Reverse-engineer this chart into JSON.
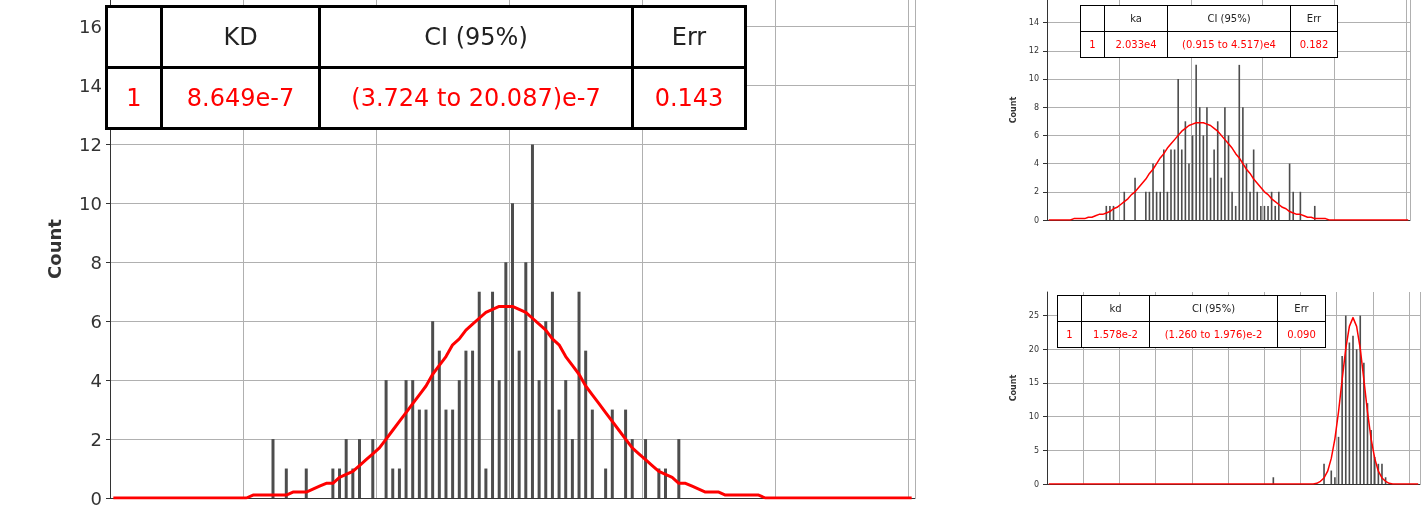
{
  "chart_data": [
    {
      "type": "bar",
      "ylabel": "Count",
      "tick_labels": "y",
      "grid": true,
      "annotations": [
        "KD",
        "CI (95%)",
        "Err",
        "1",
        "8.649e-7",
        "(3.724 to 20.087)e-7",
        "0.143"
      ],
      "categories": [
        null,
        null,
        null,
        null,
        null,
        null,
        null,
        null,
        null,
        null,
        null,
        null,
        null,
        null,
        null,
        null,
        null,
        null,
        null,
        null,
        null,
        null,
        null,
        null,
        null,
        null,
        null,
        null,
        null,
        null,
        null,
        null,
        null,
        null,
        null,
        null,
        null,
        null,
        null,
        null,
        null,
        null,
        null,
        null,
        null,
        null,
        null,
        null,
        null,
        null,
        null,
        null,
        null,
        null,
        null,
        null,
        null,
        null,
        null,
        null,
        null,
        null,
        null,
        null,
        null,
        null,
        null,
        null,
        null,
        null,
        null,
        null,
        null,
        null,
        null,
        null,
        null,
        null,
        null,
        null,
        null,
        null,
        null,
        null,
        null,
        null,
        null,
        null,
        null,
        null,
        null,
        null,
        null,
        null,
        null,
        null,
        null,
        null,
        null,
        null,
        null,
        null,
        null,
        null,
        null,
        null,
        null,
        null,
        null,
        null,
        null,
        null,
        null,
        null,
        null,
        null,
        null,
        null,
        null,
        null,
        null
      ],
      "ylim": [
        0,
        16.9
      ],
      "yticks": [
        0,
        2,
        4,
        6,
        8,
        10,
        12,
        14,
        16
      ],
      "series": [
        {
          "color": "#4d4d4d",
          "values": [
            0,
            0,
            0,
            0,
            0,
            0,
            0,
            0,
            0,
            0,
            0,
            0,
            0,
            0,
            0,
            0,
            0,
            0,
            0,
            0,
            0,
            0,
            0,
            0,
            2,
            0,
            1,
            0,
            0,
            1,
            0,
            0,
            0,
            1,
            1,
            2,
            1,
            2,
            0,
            2,
            0,
            4,
            1,
            1,
            4,
            4,
            3,
            3,
            6,
            5,
            3,
            3,
            4,
            5,
            5,
            7,
            1,
            7,
            4,
            8,
            10,
            5,
            8,
            12,
            4,
            6,
            7,
            3,
            4,
            2,
            7,
            5,
            3,
            0,
            1,
            3,
            0,
            3,
            2,
            0,
            2,
            0,
            1,
            1,
            0,
            2,
            0,
            0,
            0,
            0,
            0,
            0,
            0,
            0,
            0,
            0,
            0,
            0,
            0,
            0,
            0,
            0,
            0,
            0,
            0,
            0,
            0,
            0,
            0,
            0,
            0,
            0,
            0,
            0,
            0,
            0,
            0,
            0,
            0,
            0,
            0
          ]
        },
        {
          "type": "line",
          "color": "#ff0000",
          "values": [
            0,
            0,
            0,
            0,
            0,
            0,
            0,
            0,
            0,
            0,
            0,
            0,
            0,
            0,
            0,
            0,
            0,
            0,
            0,
            0,
            0,
            0.1,
            0.1,
            0.1,
            0.1,
            0.1,
            0.1,
            0.2,
            0.2,
            0.2,
            0.3,
            0.4,
            0.5,
            0.5,
            0.7,
            0.8,
            0.9,
            1.1,
            1.3,
            1.5,
            1.7,
            2.0,
            2.3,
            2.6,
            2.9,
            3.2,
            3.5,
            3.8,
            4.2,
            4.5,
            4.8,
            5.2,
            5.4,
            5.7,
            5.9,
            6.1,
            6.3,
            6.4,
            6.5,
            6.5,
            6.5,
            6.4,
            6.3,
            6.1,
            5.9,
            5.7,
            5.4,
            5.2,
            4.8,
            4.5,
            4.2,
            3.8,
            3.5,
            3.2,
            2.9,
            2.6,
            2.3,
            2.0,
            1.7,
            1.5,
            1.3,
            1.1,
            0.9,
            0.8,
            0.7,
            0.5,
            0.5,
            0.4,
            0.3,
            0.2,
            0.2,
            0.2,
            0.1,
            0.1,
            0.1,
            0.1,
            0.1,
            0.1,
            0,
            0,
            0,
            0,
            0,
            0,
            0,
            0,
            0,
            0,
            0,
            0,
            0,
            0,
            0,
            0,
            0,
            0,
            0,
            0,
            0,
            0,
            0
          ]
        }
      ]
    },
    {
      "type": "bar",
      "ylabel": "Count",
      "tick_labels": "y",
      "grid": true,
      "annotations": [
        "ka",
        "CI (95%)",
        "Err",
        "1",
        "2.033e4",
        "(0.915 to 4.517)e4",
        "0.182"
      ],
      "categories": [
        null,
        null,
        null,
        null,
        null,
        null,
        null,
        null,
        null,
        null,
        null,
        null,
        null,
        null,
        null,
        null,
        null,
        null,
        null,
        null,
        null,
        null,
        null,
        null,
        null,
        null,
        null,
        null,
        null,
        null,
        null,
        null,
        null,
        null,
        null,
        null,
        null,
        null,
        null,
        null,
        null,
        null,
        null,
        null,
        null,
        null,
        null,
        null,
        null,
        null,
        null,
        null,
        null,
        null,
        null,
        null,
        null,
        null,
        null,
        null,
        null,
        null,
        null,
        null,
        null,
        null,
        null,
        null,
        null,
        null,
        null,
        null,
        null,
        null,
        null,
        null,
        null,
        null,
        null,
        null,
        null,
        null,
        null,
        null,
        null,
        null,
        null,
        null,
        null,
        null,
        null,
        null,
        null,
        null,
        null,
        null,
        null,
        null,
        null,
        null,
        null
      ],
      "ylim": [
        0,
        15.6
      ],
      "yticks": [
        0,
        2,
        4,
        6,
        8,
        10,
        12,
        14
      ],
      "series": [
        {
          "color": "#4d4d4d",
          "values": [
            0,
            0,
            0,
            0,
            0,
            0,
            0,
            0,
            0,
            0,
            0,
            0,
            0,
            0,
            0,
            0,
            1,
            1,
            1,
            0,
            0,
            2,
            0,
            0,
            3,
            0,
            0,
            2,
            2,
            4,
            2,
            2,
            5,
            2,
            5,
            5,
            10,
            5,
            7,
            4,
            6,
            11,
            8,
            6,
            8,
            3,
            5,
            7,
            3,
            8,
            6,
            2,
            1,
            11,
            8,
            4,
            2,
            5,
            2,
            1,
            1,
            1,
            2,
            1,
            2,
            0,
            0,
            4,
            2,
            0,
            2,
            0,
            0,
            0,
            1,
            0,
            0,
            0,
            0,
            0,
            0,
            0,
            0,
            0,
            0,
            0,
            0,
            0,
            0,
            0,
            0,
            0,
            0,
            0,
            0,
            0,
            0,
            0,
            0,
            0,
            0
          ]
        },
        {
          "type": "line",
          "color": "#ff0000",
          "values": [
            0,
            0,
            0,
            0,
            0,
            0,
            0,
            0.1,
            0.1,
            0.1,
            0.1,
            0.2,
            0.2,
            0.3,
            0.4,
            0.4,
            0.5,
            0.6,
            0.8,
            0.9,
            1.1,
            1.3,
            1.5,
            1.8,
            2.0,
            2.3,
            2.6,
            2.9,
            3.3,
            3.6,
            4.0,
            4.4,
            4.7,
            5.1,
            5.4,
            5.7,
            6.0,
            6.3,
            6.5,
            6.7,
            6.8,
            6.9,
            6.9,
            6.9,
            6.8,
            6.7,
            6.5,
            6.3,
            6.0,
            5.7,
            5.4,
            5.1,
            4.7,
            4.4,
            4.0,
            3.6,
            3.3,
            2.9,
            2.6,
            2.3,
            2.0,
            1.8,
            1.5,
            1.3,
            1.1,
            0.9,
            0.8,
            0.6,
            0.5,
            0.4,
            0.4,
            0.3,
            0.2,
            0.2,
            0.1,
            0.1,
            0.1,
            0.1,
            0,
            0,
            0,
            0,
            0,
            0,
            0,
            0,
            0,
            0,
            0,
            0,
            0,
            0,
            0,
            0,
            0,
            0,
            0,
            0,
            0,
            0,
            0
          ]
        }
      ]
    },
    {
      "type": "bar",
      "ylabel": "Count",
      "tick_labels": "y",
      "grid": true,
      "annotations": [
        "kd",
        "CI (95%)",
        "Err",
        "1",
        "1.578e-2",
        "(1.260 to 1.976)e-2",
        "0.090"
      ],
      "categories": [
        null,
        null,
        null,
        null,
        null,
        null,
        null,
        null,
        null,
        null,
        null,
        null,
        null,
        null,
        null,
        null,
        null,
        null,
        null,
        null,
        null,
        null,
        null,
        null,
        null,
        null,
        null,
        null,
        null,
        null,
        null,
        null,
        null,
        null,
        null,
        null,
        null,
        null,
        null,
        null,
        null,
        null,
        null,
        null,
        null,
        null,
        null,
        null,
        null,
        null,
        null,
        null,
        null,
        null,
        null,
        null,
        null,
        null,
        null,
        null,
        null,
        null,
        null,
        null,
        null,
        null,
        null,
        null,
        null,
        null,
        null,
        null,
        null,
        null,
        null,
        null,
        null,
        null,
        null,
        null,
        null,
        null,
        null,
        null,
        null,
        null,
        null,
        null,
        null,
        null,
        null,
        null,
        null,
        null,
        null,
        null,
        null,
        null,
        null,
        null,
        null,
        null,
        null
      ],
      "ylim": [
        0,
        28.5
      ],
      "yticks": [
        0,
        5,
        10,
        15,
        20,
        25
      ],
      "series": [
        {
          "color": "#4d4d4d",
          "values": [
            0,
            0,
            0,
            0,
            0,
            0,
            0,
            0,
            0,
            0,
            0,
            0,
            0,
            0,
            0,
            0,
            0,
            0,
            0,
            0,
            0,
            0,
            0,
            0,
            0,
            0,
            0,
            0,
            0,
            0,
            0,
            0,
            0,
            0,
            0,
            0,
            0,
            0,
            0,
            0,
            0,
            0,
            0,
            0,
            0,
            0,
            0,
            0,
            0,
            0,
            0,
            0,
            0,
            0,
            0,
            0,
            0,
            0,
            0,
            0,
            0,
            0,
            1,
            0,
            0,
            0,
            0,
            0,
            0,
            0,
            0,
            0,
            0,
            0,
            0,
            0,
            3,
            0,
            2,
            1,
            7,
            19,
            25,
            21,
            22,
            20,
            25,
            18,
            12,
            8,
            4,
            3,
            3,
            1,
            0,
            0,
            0,
            0,
            0,
            0,
            0,
            0,
            0
          ]
        },
        {
          "type": "line",
          "color": "#ff0000",
          "values": [
            0,
            0,
            0,
            0,
            0,
            0,
            0,
            0,
            0,
            0,
            0,
            0,
            0,
            0,
            0,
            0,
            0,
            0,
            0,
            0,
            0,
            0,
            0,
            0,
            0,
            0,
            0,
            0,
            0,
            0,
            0,
            0,
            0,
            0,
            0,
            0,
            0,
            0,
            0,
            0,
            0,
            0,
            0,
            0,
            0,
            0,
            0,
            0,
            0,
            0,
            0,
            0,
            0,
            0,
            0,
            0,
            0,
            0,
            0,
            0,
            0,
            0,
            0,
            0,
            0,
            0,
            0,
            0,
            0,
            0,
            0,
            0,
            0,
            0,
            0.1,
            0.4,
            0.9,
            1.9,
            3.8,
            6.7,
            10.7,
            15.5,
            20.1,
            23.4,
            24.7,
            23.4,
            20.1,
            15.5,
            10.7,
            6.7,
            3.8,
            1.9,
            0.9,
            0.4,
            0.1,
            0,
            0,
            0,
            0,
            0,
            0,
            0,
            0
          ]
        }
      ]
    }
  ]
}
